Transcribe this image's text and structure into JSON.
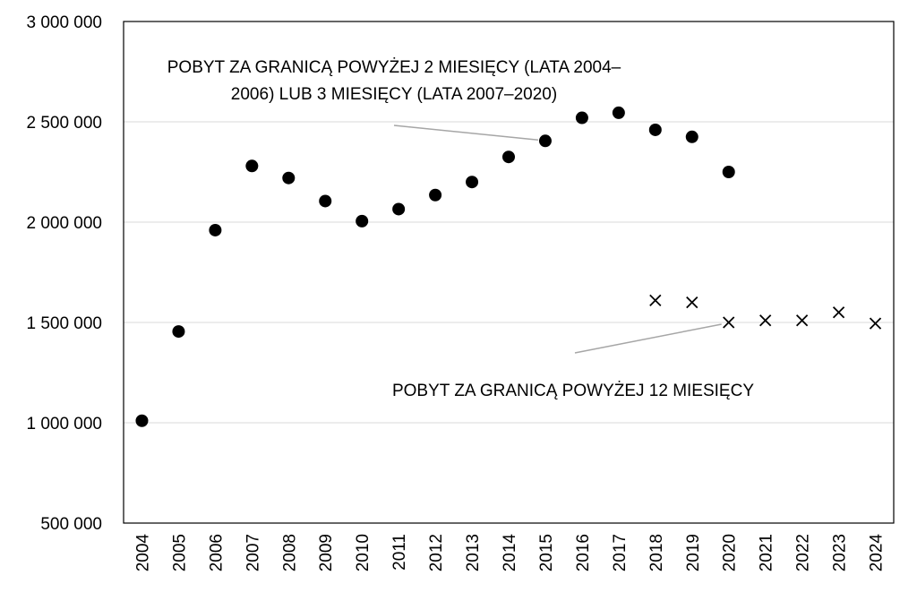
{
  "chart_data": {
    "type": "scatter",
    "title": "",
    "xlabel": "",
    "ylabel": "",
    "x_categories": [
      "2004",
      "2005",
      "2006",
      "2007",
      "2008",
      "2009",
      "2010",
      "2011",
      "2012",
      "2013",
      "2014",
      "2015",
      "2016",
      "2017",
      "2018",
      "2019",
      "2020",
      "2021",
      "2022",
      "2023",
      "2024"
    ],
    "y_ticks": [
      500000,
      1000000,
      1500000,
      2000000,
      2500000,
      3000000
    ],
    "y_tick_labels": [
      "500 000",
      "1 000 000",
      "1 500 000",
      "2 000 000",
      "2 500 000",
      "3 000 000"
    ],
    "ylim": [
      500000,
      3000000
    ],
    "grid": "horizontal",
    "series": [
      {
        "marker": "circle",
        "color": "#000000",
        "points": [
          {
            "x": "2004",
            "y": 1010000
          },
          {
            "x": "2005",
            "y": 1455000
          },
          {
            "x": "2006",
            "y": 1960000
          },
          {
            "x": "2007",
            "y": 2280000
          },
          {
            "x": "2008",
            "y": 2220000
          },
          {
            "x": "2009",
            "y": 2105000
          },
          {
            "x": "2010",
            "y": 2005000
          },
          {
            "x": "2011",
            "y": 2065000
          },
          {
            "x": "2012",
            "y": 2135000
          },
          {
            "x": "2013",
            "y": 2200000
          },
          {
            "x": "2014",
            "y": 2325000
          },
          {
            "x": "2015",
            "y": 2405000
          },
          {
            "x": "2016",
            "y": 2520000
          },
          {
            "x": "2017",
            "y": 2545000
          },
          {
            "x": "2018",
            "y": 2460000
          },
          {
            "x": "2019",
            "y": 2425000
          },
          {
            "x": "2020",
            "y": 2250000
          }
        ]
      },
      {
        "marker": "cross",
        "color": "#000000",
        "points": [
          {
            "x": "2018",
            "y": 1610000
          },
          {
            "x": "2019",
            "y": 1600000
          },
          {
            "x": "2020",
            "y": 1500000
          },
          {
            "x": "2021",
            "y": 1510000
          },
          {
            "x": "2022",
            "y": 1510000
          },
          {
            "x": "2023",
            "y": 1550000
          },
          {
            "x": "2024",
            "y": 1495000
          }
        ]
      }
    ],
    "annotations": [
      {
        "lines": [
          "POBYT ZA GRANICĄ POWYŻEJ 2 MIESIĘCY (LATA 2004–",
          "2006) LUB 3 MIESIĘCY (LATA 2007–2020)"
        ],
        "points_to": {
          "x": "2015",
          "y": 2405000
        }
      },
      {
        "lines": [
          "POBYT ZA GRANICĄ POWYŻEJ 12 MIESIĘCY"
        ],
        "points_to": {
          "x": "2020",
          "y": 1500000
        }
      }
    ]
  }
}
